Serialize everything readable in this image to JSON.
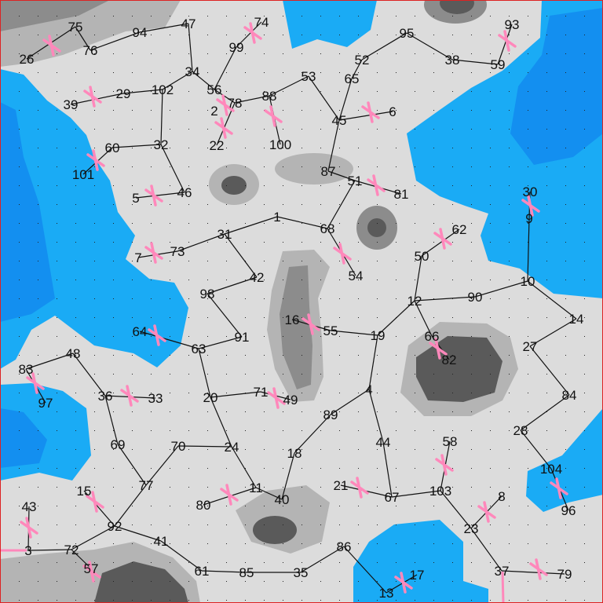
{
  "colors": {
    "land": "#dcdcdc",
    "water_light": "#1aabf5",
    "water_dark": "#138ff0",
    "hill_light": "#b4b4b4",
    "hill_mid": "#8c8c8c",
    "hill_dark": "#5a5a5a",
    "edge": "#111111",
    "marker": "#ff88bb",
    "border": "#dd2222"
  },
  "marker_icon": "pink-x-mark",
  "nodes": [
    "1",
    "2",
    "3",
    "4",
    "5",
    "6",
    "7",
    "8",
    "9",
    "10",
    "11",
    "12",
    "13",
    "14",
    "15",
    "16",
    "17",
    "18",
    "19",
    "20",
    "21",
    "22",
    "23",
    "24",
    "26",
    "27",
    "28",
    "29",
    "30",
    "31",
    "32",
    "33",
    "34",
    "35",
    "36",
    "37",
    "38",
    "39",
    "40",
    "41",
    "42",
    "43",
    "44",
    "45",
    "46",
    "47",
    "48",
    "49",
    "50",
    "51",
    "52",
    "53",
    "54",
    "55",
    "56",
    "57",
    "58",
    "59",
    "60",
    "61",
    "62",
    "63",
    "64",
    "65",
    "66",
    "67",
    "68",
    "69",
    "70",
    "71",
    "72",
    "73",
    "74",
    "75",
    "76",
    "77",
    "78",
    "79",
    "80",
    "81",
    "82",
    "83",
    "84",
    "85",
    "86",
    "87",
    "88",
    "89",
    "90",
    "91",
    "92",
    "93",
    "94",
    "95",
    "96",
    "97",
    "98",
    "99",
    "100",
    "101",
    "102",
    "103",
    "104"
  ],
  "edges": [
    [
      "26",
      "75"
    ],
    [
      "75",
      "76"
    ],
    [
      "76",
      "94"
    ],
    [
      "94",
      "47"
    ],
    [
      "47",
      "34"
    ],
    [
      "34",
      "102"
    ],
    [
      "102",
      "29"
    ],
    [
      "29",
      "39"
    ],
    [
      "102",
      "32"
    ],
    [
      "32",
      "60"
    ],
    [
      "60",
      "101"
    ],
    [
      "32",
      "46"
    ],
    [
      "46",
      "5"
    ],
    [
      "34",
      "56"
    ],
    [
      "56",
      "99"
    ],
    [
      "99",
      "74"
    ],
    [
      "56",
      "78"
    ],
    [
      "78",
      "88"
    ],
    [
      "78",
      "22"
    ],
    [
      "88",
      "100"
    ],
    [
      "88",
      "53"
    ],
    [
      "53",
      "45"
    ],
    [
      "45",
      "65"
    ],
    [
      "65",
      "52"
    ],
    [
      "52",
      "95"
    ],
    [
      "95",
      "38"
    ],
    [
      "38",
      "59"
    ],
    [
      "59",
      "93"
    ],
    [
      "45",
      "6"
    ],
    [
      "45",
      "87"
    ],
    [
      "87",
      "51"
    ],
    [
      "51",
      "81"
    ],
    [
      "51",
      "68"
    ],
    [
      "68",
      "54"
    ],
    [
      "68",
      "1"
    ],
    [
      "1",
      "31"
    ],
    [
      "31",
      "73"
    ],
    [
      "73",
      "7"
    ],
    [
      "31",
      "42"
    ],
    [
      "42",
      "98"
    ],
    [
      "98",
      "91"
    ],
    [
      "91",
      "63"
    ],
    [
      "63",
      "64"
    ],
    [
      "63",
      "20"
    ],
    [
      "20",
      "71"
    ],
    [
      "71",
      "49"
    ],
    [
      "20",
      "24"
    ],
    [
      "24",
      "70"
    ],
    [
      "70",
      "77"
    ],
    [
      "77",
      "69"
    ],
    [
      "69",
      "36"
    ],
    [
      "36",
      "33"
    ],
    [
      "36",
      "48"
    ],
    [
      "48",
      "83"
    ],
    [
      "83",
      "97"
    ],
    [
      "77",
      "92"
    ],
    [
      "92",
      "15"
    ],
    [
      "92",
      "72"
    ],
    [
      "72",
      "3"
    ],
    [
      "3",
      "43"
    ],
    [
      "72",
      "57"
    ],
    [
      "92",
      "41"
    ],
    [
      "41",
      "61"
    ],
    [
      "61",
      "85"
    ],
    [
      "85",
      "35"
    ],
    [
      "35",
      "86"
    ],
    [
      "86",
      "13"
    ],
    [
      "13",
      "17"
    ],
    [
      "24",
      "11"
    ],
    [
      "11",
      "80"
    ],
    [
      "11",
      "40"
    ],
    [
      "40",
      "18"
    ],
    [
      "18",
      "89"
    ],
    [
      "89",
      "4"
    ],
    [
      "4",
      "19"
    ],
    [
      "4",
      "44"
    ],
    [
      "44",
      "67"
    ],
    [
      "67",
      "21"
    ],
    [
      "67",
      "103"
    ],
    [
      "103",
      "58"
    ],
    [
      "103",
      "23"
    ],
    [
      "23",
      "8"
    ],
    [
      "23",
      "37"
    ],
    [
      "37",
      "79"
    ],
    [
      "19",
      "55"
    ],
    [
      "55",
      "16"
    ],
    [
      "19",
      "12"
    ],
    [
      "12",
      "50"
    ],
    [
      "50",
      "62"
    ],
    [
      "12",
      "66"
    ],
    [
      "66",
      "82"
    ],
    [
      "12",
      "90"
    ],
    [
      "90",
      "10"
    ],
    [
      "10",
      "9"
    ],
    [
      "9",
      "30"
    ],
    [
      "10",
      "14"
    ],
    [
      "14",
      "27"
    ],
    [
      "27",
      "84"
    ],
    [
      "84",
      "28"
    ],
    [
      "28",
      "104"
    ],
    [
      "104",
      "96"
    ]
  ]
}
